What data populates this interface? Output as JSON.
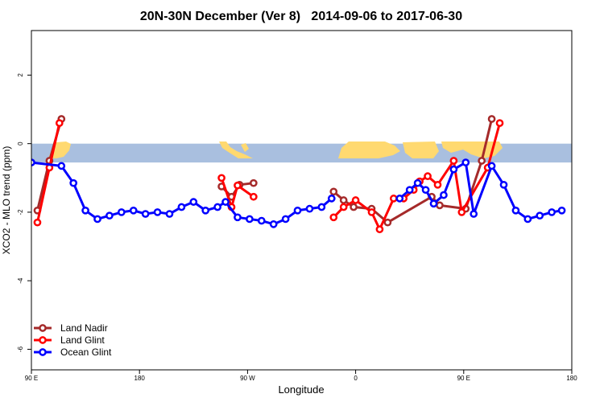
{
  "chart_data": {
    "type": "line",
    "title": "20N-30N December (Ver 8)   2014-09-06 to 2017-06-30",
    "xlabel": "Longitude",
    "ylabel": "XCO2 - MLO trend (ppm)",
    "xlim": [
      -90,
      180
    ],
    "ylim": [
      -6.6,
      3.3
    ],
    "x_ticks": [
      {
        "value": -90,
        "label": "90 E"
      },
      {
        "value": -36,
        "label": "180"
      },
      {
        "value": 18,
        "label": "90 W"
      },
      {
        "value": 72,
        "label": "0"
      },
      {
        "value": 126,
        "label": "90 E"
      },
      {
        "value": 180,
        "label": "180"
      }
    ],
    "y_ticks": [
      -6,
      -4,
      -2,
      0,
      2
    ],
    "map_band": {
      "y_top": 0,
      "y_bottom": -0.55,
      "ocean_color": "#a9bfdf",
      "land_color": "#ffd970"
    },
    "legend_position": "bottom-left",
    "series": [
      {
        "name": "Land Nadir",
        "color": "#a52a2a",
        "points": [
          [
            -87,
            -1.95
          ],
          [
            -81,
            -0.5
          ],
          [
            -75,
            0.72
          ],
          [
            5,
            -1.25
          ],
          [
            10,
            -1.55
          ],
          [
            14,
            -1.2
          ],
          [
            21,
            -1.15
          ],
          [
            61,
            -1.4
          ],
          [
            66,
            -1.65
          ],
          [
            71,
            -1.85
          ],
          [
            80,
            -1.9
          ],
          [
            88,
            -2.3
          ],
          [
            110,
            -1.55
          ],
          [
            114,
            -1.8
          ],
          [
            127,
            -1.9
          ],
          [
            135,
            -0.5
          ],
          [
            140,
            0.72
          ]
        ]
      },
      {
        "name": "Land Glint",
        "color": "#ff0000",
        "points": [
          [
            -87,
            -2.3
          ],
          [
            -81,
            -0.7
          ],
          [
            -76,
            0.6
          ],
          [
            5,
            -1.0
          ],
          [
            10,
            -1.85
          ],
          [
            13,
            -1.22
          ],
          [
            21,
            -1.55
          ],
          [
            61,
            -2.15
          ],
          [
            66,
            -1.85
          ],
          [
            72,
            -1.65
          ],
          [
            80,
            -2.0
          ],
          [
            84,
            -2.5
          ],
          [
            91,
            -1.6
          ],
          [
            96,
            -1.6
          ],
          [
            101,
            -1.35
          ],
          [
            104,
            -1.1
          ],
          [
            108,
            -0.95
          ],
          [
            113,
            -1.2
          ],
          [
            121,
            -0.5
          ],
          [
            125,
            -2.0
          ],
          [
            138,
            -0.7
          ],
          [
            144,
            0.6
          ]
        ]
      },
      {
        "name": "Ocean Glint",
        "color": "#0000ff",
        "points": [
          [
            -90,
            -0.55
          ],
          [
            -75,
            -0.65
          ],
          [
            -69,
            -1.15
          ],
          [
            -63,
            -1.95
          ],
          [
            -57,
            -2.2
          ],
          [
            -51,
            -2.1
          ],
          [
            -45,
            -2.0
          ],
          [
            -39,
            -1.95
          ],
          [
            -33,
            -2.05
          ],
          [
            -27,
            -2.0
          ],
          [
            -21,
            -2.05
          ],
          [
            -15,
            -1.85
          ],
          [
            -9,
            -1.7
          ],
          [
            -3,
            -1.95
          ],
          [
            3,
            -1.85
          ],
          [
            7,
            -1.7
          ],
          [
            13,
            -2.15
          ],
          [
            19,
            -2.2
          ],
          [
            25,
            -2.25
          ],
          [
            31,
            -2.35
          ],
          [
            37,
            -2.2
          ],
          [
            43,
            -1.95
          ],
          [
            49,
            -1.9
          ],
          [
            55,
            -1.85
          ],
          [
            60,
            -1.6
          ],
          [
            94,
            -1.6
          ],
          [
            99,
            -1.35
          ],
          [
            103,
            -1.15
          ],
          [
            107,
            -1.35
          ],
          [
            111,
            -1.75
          ],
          [
            116,
            -1.5
          ],
          [
            121,
            -0.75
          ],
          [
            127,
            -0.55
          ],
          [
            131,
            -2.05
          ],
          [
            140,
            -0.65
          ],
          [
            146,
            -1.2
          ],
          [
            152,
            -1.95
          ],
          [
            158,
            -2.2
          ],
          [
            164,
            -2.1
          ],
          [
            170,
            -2.0
          ],
          [
            175,
            -1.95
          ]
        ]
      }
    ]
  }
}
